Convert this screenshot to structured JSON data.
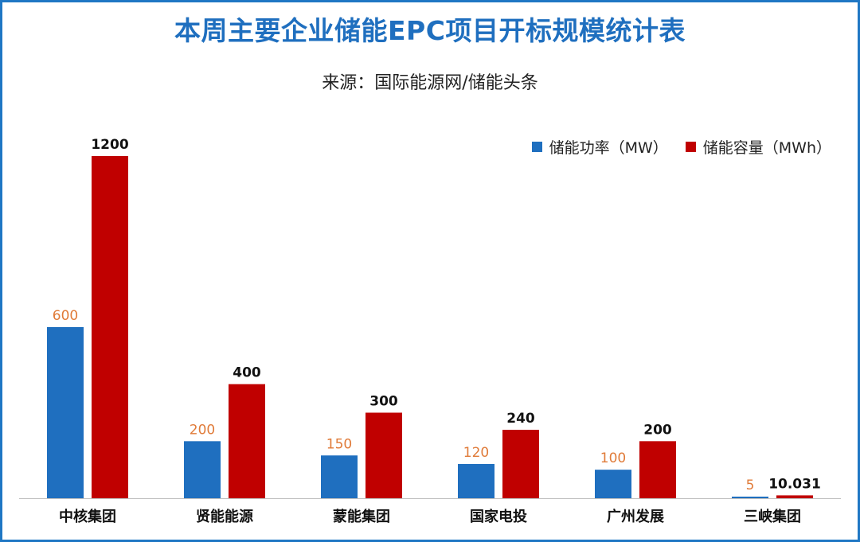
{
  "title": "本周主要企业储能EPC项目开标规模统计表",
  "subtitle": "来源：国际能源网/储能头条",
  "colors": {
    "frame": "#1f77c4",
    "title": "#1f6fbf",
    "power": "#1f6fbf",
    "capacity": "#c00000",
    "power_label": "#e07b39",
    "capacity_label": "#111111",
    "axis": "#bfbfbf"
  },
  "legend": {
    "power_label": "储能功率（MW）",
    "capacity_label": "储能容量（MWh）"
  },
  "chart_data": {
    "type": "bar",
    "categories": [
      "中核集团",
      "贤能能源",
      "蒙能集团",
      "国家电投",
      "广州发展",
      "三峡集团"
    ],
    "series": [
      {
        "name": "储能功率（MW）",
        "values": [
          600,
          200,
          150,
          120,
          100,
          5
        ],
        "labels": [
          "600",
          "200",
          "150",
          "120",
          "100",
          "5"
        ]
      },
      {
        "name": "储能容量（MWh）",
        "values": [
          1200,
          400,
          300,
          240,
          200,
          10.031
        ],
        "labels": [
          "1200",
          "400",
          "300",
          "240",
          "200",
          "10.031"
        ]
      }
    ],
    "ylim": [
      0,
      1200
    ],
    "grid": false,
    "legend_position": "top-right"
  }
}
